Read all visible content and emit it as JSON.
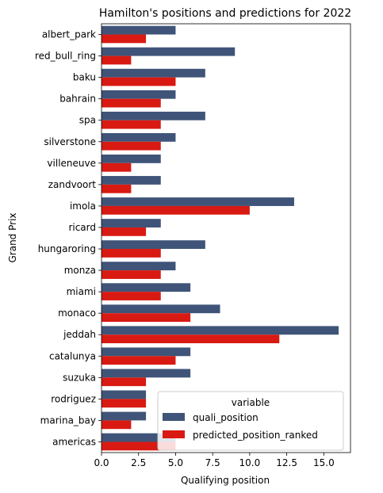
{
  "chart_data": {
    "type": "bar",
    "orientation": "horizontal",
    "title": "Hamilton's positions and predictions for 2022",
    "xlabel": "Qualifying position",
    "ylabel": "Grand Prix",
    "xlim": [
      0,
      16.8
    ],
    "xticks": [
      0.0,
      2.5,
      5.0,
      7.5,
      10.0,
      12.5,
      15.0
    ],
    "xtick_labels": [
      "0.0",
      "2.5",
      "5.0",
      "7.5",
      "10.0",
      "12.5",
      "15.0"
    ],
    "grid": false,
    "categories": [
      "albert_park",
      "red_bull_ring",
      "baku",
      "bahrain",
      "spa",
      "silverstone",
      "villeneuve",
      "zandvoort",
      "imola",
      "ricard",
      "hungaroring",
      "monza",
      "miami",
      "monaco",
      "jeddah",
      "catalunya",
      "suzuka",
      "rodriguez",
      "marina_bay",
      "americas"
    ],
    "series": [
      {
        "name": "quali_position",
        "color": "#3f5478",
        "values": [
          5,
          9,
          7,
          5,
          7,
          5,
          4,
          4,
          13,
          4,
          7,
          5,
          6,
          8,
          16,
          6,
          6,
          3,
          3,
          5
        ]
      },
      {
        "name": "predicted_position_ranked",
        "color": "#d81a12",
        "values": [
          3,
          2,
          5,
          4,
          4,
          4,
          2,
          2,
          10,
          3,
          4,
          4,
          4,
          6,
          12,
          5,
          3,
          3,
          2,
          5
        ]
      }
    ],
    "legend": {
      "title": "variable",
      "placement": "lower-right"
    }
  }
}
